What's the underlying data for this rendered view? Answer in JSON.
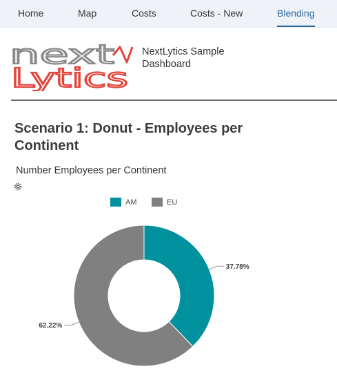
{
  "nav": {
    "tabs": [
      {
        "label": "Home",
        "active": false
      },
      {
        "label": "Map",
        "active": false
      },
      {
        "label": "Costs",
        "active": false
      },
      {
        "label": "Costs - New",
        "active": false
      },
      {
        "label": "Blending",
        "active": true
      }
    ]
  },
  "header": {
    "logo": {
      "line1": "next",
      "line2": "Lytics"
    },
    "title": "NextLytics Sample Dashboard"
  },
  "section": {
    "title": "Scenario 1: Donut - Employees per Continent"
  },
  "chart": {
    "settings_icon": "gear-icon"
  },
  "colors": {
    "accent": "#2e6a9b",
    "am": "#00919f",
    "eu": "#808080",
    "logo_red": "#e2453c",
    "logo_gray": "#8a8a8a"
  },
  "chart_data": {
    "type": "pie",
    "title": "Number Employees per Continent",
    "legend_position": "top",
    "categories": [
      "AM",
      "EU"
    ],
    "values": [
      37.78,
      62.22
    ],
    "data_labels": [
      "37.78%",
      "62.22%"
    ]
  }
}
